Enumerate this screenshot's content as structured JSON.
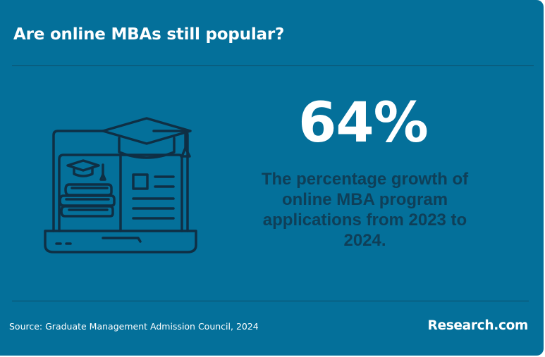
{
  "header": {
    "title": "Are online MBAs still popular?"
  },
  "stat": {
    "value": "64%",
    "description": "The percentage growth of online MBA program applications from 2023 to 2024."
  },
  "footer": {
    "source": "Source: Graduate Management Admission Council, 2024",
    "brand": "Research.com"
  },
  "illustration": {
    "icon": "laptop-graduation-cap-books-icon"
  },
  "colors": {
    "background": "#04709a",
    "divider": "#0d4e69",
    "icon_stroke": "#0f2f44",
    "title_text": "#ffffff",
    "description_text": "#0f3f58"
  }
}
